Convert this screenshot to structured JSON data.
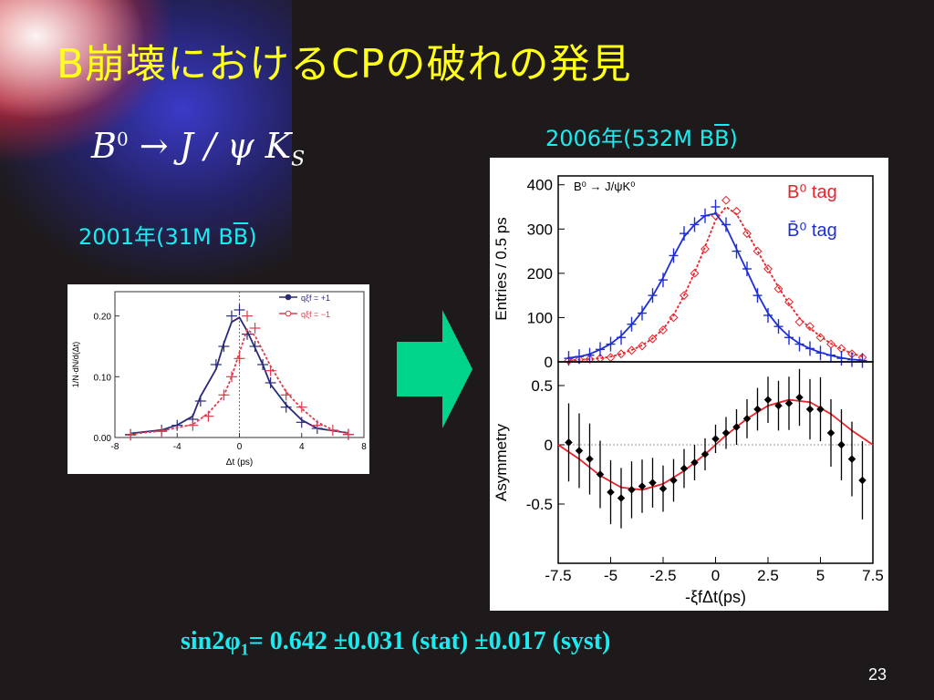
{
  "slide": {
    "title": "B崩壊におけるCPの破れの発見",
    "equation": {
      "b": "B",
      "b_sup": "0",
      "arrow": "→ J / ψ ",
      "k": "K",
      "k_sub": "S"
    },
    "label_2006_pre": "2006年(532M B",
    "label_2006_bar": "B",
    "label_2006_post": ")",
    "label_2001_pre": "2001年(31M B",
    "label_2001_bar": "B",
    "label_2001_post": ")",
    "result": {
      "pre": "sin2φ",
      "sub": "1",
      "post": "= 0.642 ±0.031 (stat) ±0.017 (syst)"
    },
    "page_number": "23",
    "colors": {
      "title": "#ffff1a",
      "label": "#19ecf0",
      "arrow": "#00d48a",
      "text": "#ffffff"
    }
  },
  "chart_data": [
    {
      "type": "line",
      "xlabel": "Δt (ps)",
      "ylabel": "1/N·dN/d(Δt)",
      "xlim": [
        -8,
        8
      ],
      "ylim": [
        0,
        0.24
      ],
      "xticks": [
        "-8",
        "-4",
        "0",
        "4",
        "8"
      ],
      "yticks": [
        "0.00",
        "0.10",
        "0.20"
      ],
      "legend": [
        "qξf = +1",
        "qξf = −1"
      ],
      "legend_position": "top-right",
      "series": [
        {
          "name": "qξf = +1",
          "color": "#2b2a7a",
          "x": [
            -7,
            -5,
            -4,
            -3,
            -2.5,
            -1.5,
            -1,
            -0.5,
            0,
            0.5,
            1,
            1.5,
            2,
            3,
            4,
            5,
            7
          ],
          "y": [
            0.005,
            0.012,
            0.02,
            0.03,
            0.06,
            0.12,
            0.15,
            0.2,
            0.21,
            0.17,
            0.15,
            0.12,
            0.09,
            0.05,
            0.025,
            0.015,
            0.005
          ]
        },
        {
          "name": "qξf = −1",
          "color": "#e03a4c",
          "x": [
            -7,
            -5,
            -3,
            -2,
            -1,
            -0.5,
            0,
            0.5,
            1,
            2,
            3,
            4,
            5,
            6,
            7
          ],
          "y": [
            0.004,
            0.01,
            0.02,
            0.035,
            0.07,
            0.1,
            0.13,
            0.2,
            0.18,
            0.11,
            0.07,
            0.05,
            0.02,
            0.012,
            0.005
          ]
        }
      ]
    },
    {
      "type": "line",
      "title": "B⁰ → J/ψK⁰",
      "ylabel": "Entries / 0.5 ps",
      "xlim": [
        -7.5,
        7.5
      ],
      "ylim": [
        0,
        420
      ],
      "yticks": [
        "0",
        "100",
        "200",
        "300",
        "400"
      ],
      "legend": [
        "B⁰ tag",
        "B̄⁰ tag"
      ],
      "legend_position": "top-right",
      "series": [
        {
          "name": "B⁰ tag",
          "color": "#e8232b",
          "x": [
            -7,
            -6.5,
            -6,
            -5.5,
            -5,
            -4.5,
            -4,
            -3.5,
            -3,
            -2.5,
            -2,
            -1.5,
            -1,
            -0.5,
            0,
            0.5,
            1,
            1.5,
            2,
            2.5,
            3,
            3.5,
            4,
            4.5,
            5,
            5.5,
            6,
            6.5,
            7
          ],
          "y": [
            3,
            5,
            6,
            8,
            10,
            18,
            26,
            36,
            52,
            72,
            100,
            150,
            200,
            255,
            330,
            365,
            340,
            290,
            250,
            210,
            165,
            135,
            90,
            80,
            55,
            40,
            30,
            18,
            10
          ]
        },
        {
          "name": "B̄⁰ tag",
          "color": "#1f2fd6",
          "x": [
            -7,
            -6.5,
            -6,
            -5.5,
            -5,
            -4.5,
            -4,
            -3.5,
            -3,
            -2.5,
            -2,
            -1.5,
            -1,
            -0.5,
            0,
            0.5,
            1,
            1.5,
            2,
            2.5,
            3,
            3.5,
            4,
            4.5,
            5,
            5.5,
            6,
            6.5,
            7
          ],
          "y": [
            8,
            12,
            15,
            28,
            40,
            55,
            85,
            110,
            150,
            185,
            240,
            290,
            310,
            330,
            350,
            310,
            250,
            210,
            150,
            105,
            80,
            55,
            40,
            30,
            20,
            15,
            8,
            5,
            3
          ]
        }
      ]
    },
    {
      "type": "scatter",
      "xlabel": "-ξfΔt(ps)",
      "ylabel": "Asymmetry",
      "xlim": [
        -7.5,
        7.5
      ],
      "ylim": [
        -1,
        0.7
      ],
      "xticks": [
        "-7.5",
        "-5",
        "-2.5",
        "0",
        "2.5",
        "5",
        "7.5"
      ],
      "yticks": [
        "0.5",
        "0",
        "-0.5"
      ],
      "series": [
        {
          "name": "",
          "color": "#000000",
          "x": [
            -7,
            -6.5,
            -6,
            -5.5,
            -5,
            -4.5,
            -4,
            -3.5,
            -3,
            -2.5,
            -2,
            -1.5,
            -1,
            -0.5,
            0,
            0.5,
            1,
            1.5,
            2,
            2.5,
            3,
            3.5,
            4,
            4.5,
            5,
            5.5,
            6,
            6.5,
            7
          ],
          "y": [
            0.02,
            -0.05,
            -0.12,
            -0.25,
            -0.4,
            -0.45,
            -0.38,
            -0.35,
            -0.32,
            -0.37,
            -0.3,
            -0.2,
            -0.15,
            -0.08,
            0.05,
            0.1,
            0.15,
            0.22,
            0.3,
            0.38,
            0.33,
            0.35,
            0.4,
            0.3,
            0.3,
            0.1,
            0.0,
            -0.12,
            -0.3
          ]
        },
        {
          "name": "",
          "color": "#e8232b",
          "x": [
            -7.5,
            -6.5,
            -5.5,
            -4.5,
            -3.5,
            -2.5,
            -1.5,
            -0.5,
            0.5,
            1.5,
            2.5,
            3.5,
            4.5,
            5.5,
            6.5,
            7.5
          ],
          "y": [
            0.0,
            -0.12,
            -0.26,
            -0.36,
            -0.38,
            -0.33,
            -0.22,
            -0.08,
            0.08,
            0.22,
            0.33,
            0.38,
            0.36,
            0.26,
            0.12,
            0.0
          ]
        }
      ]
    }
  ]
}
